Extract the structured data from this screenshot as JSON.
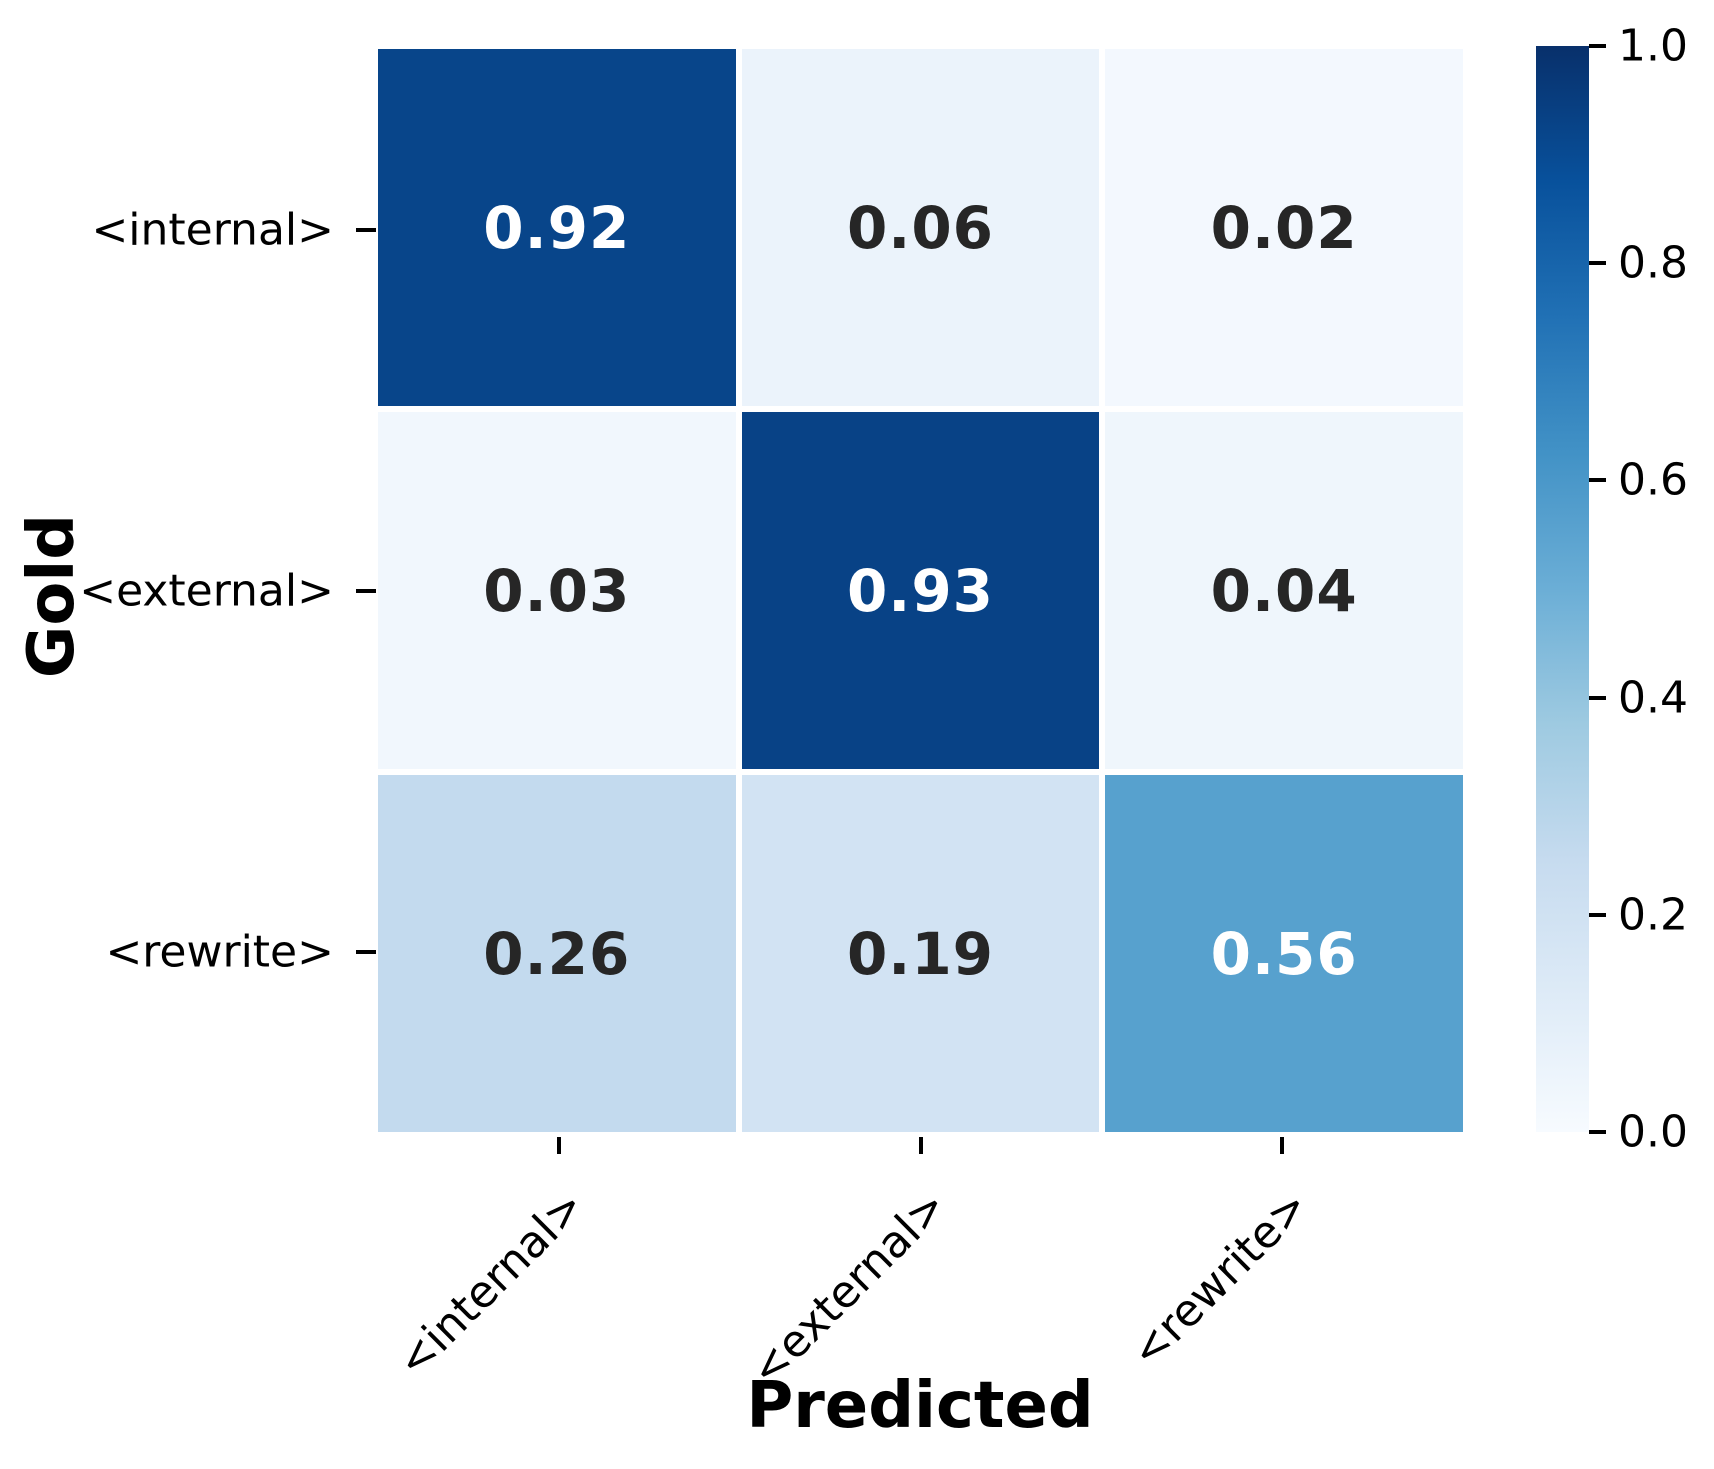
{
  "chart_data": {
    "type": "heatmap",
    "title": "",
    "xlabel": "Predicted",
    "ylabel": "Gold",
    "x_categories": [
      "<internal>",
      "<external>",
      "<rewrite>"
    ],
    "y_categories": [
      "<internal>",
      "<external>",
      "<rewrite>"
    ],
    "matrix": [
      [
        0.92,
        0.06,
        0.02
      ],
      [
        0.03,
        0.93,
        0.04
      ],
      [
        0.26,
        0.19,
        0.56
      ]
    ],
    "cell_labels": [
      [
        "0.92",
        "0.06",
        "0.02"
      ],
      [
        "0.03",
        "0.93",
        "0.04"
      ],
      [
        "0.26",
        "0.19",
        "0.56"
      ]
    ],
    "cell_colors": [
      [
        "#08458a",
        "#ebf3fb",
        "#f3f8fe"
      ],
      [
        "#f1f7fd",
        "#084286",
        "#eff6fc"
      ],
      [
        "#c3daee",
        "#d2e3f3",
        "#57a1ce"
      ]
    ],
    "cell_text_colors": [
      [
        "#ffffff",
        "#262626",
        "#262626"
      ],
      [
        "#262626",
        "#ffffff",
        "#262626"
      ],
      [
        "#262626",
        "#262626",
        "#ffffff"
      ]
    ],
    "annotation_dark_color": "#262626",
    "annotation_light_color": "#ffffff",
    "colormap": "Blues",
    "grid": false,
    "legend_position": "right-colorbar",
    "colorbar": {
      "min": 0.0,
      "max": 1.0,
      "tick_labels": [
        "1.0",
        "0.8",
        "0.6",
        "0.4",
        "0.2",
        "0.0"
      ],
      "tick_values": [
        1.0,
        0.8,
        0.6,
        0.4,
        0.2,
        0.0
      ],
      "gradient_stops_bottom_to_top": [
        "#f7fbff",
        "#deebf7",
        "#c6dbef",
        "#9ecae1",
        "#6baed6",
        "#4292c6",
        "#2171b5",
        "#08519c",
        "#08306b"
      ]
    }
  }
}
